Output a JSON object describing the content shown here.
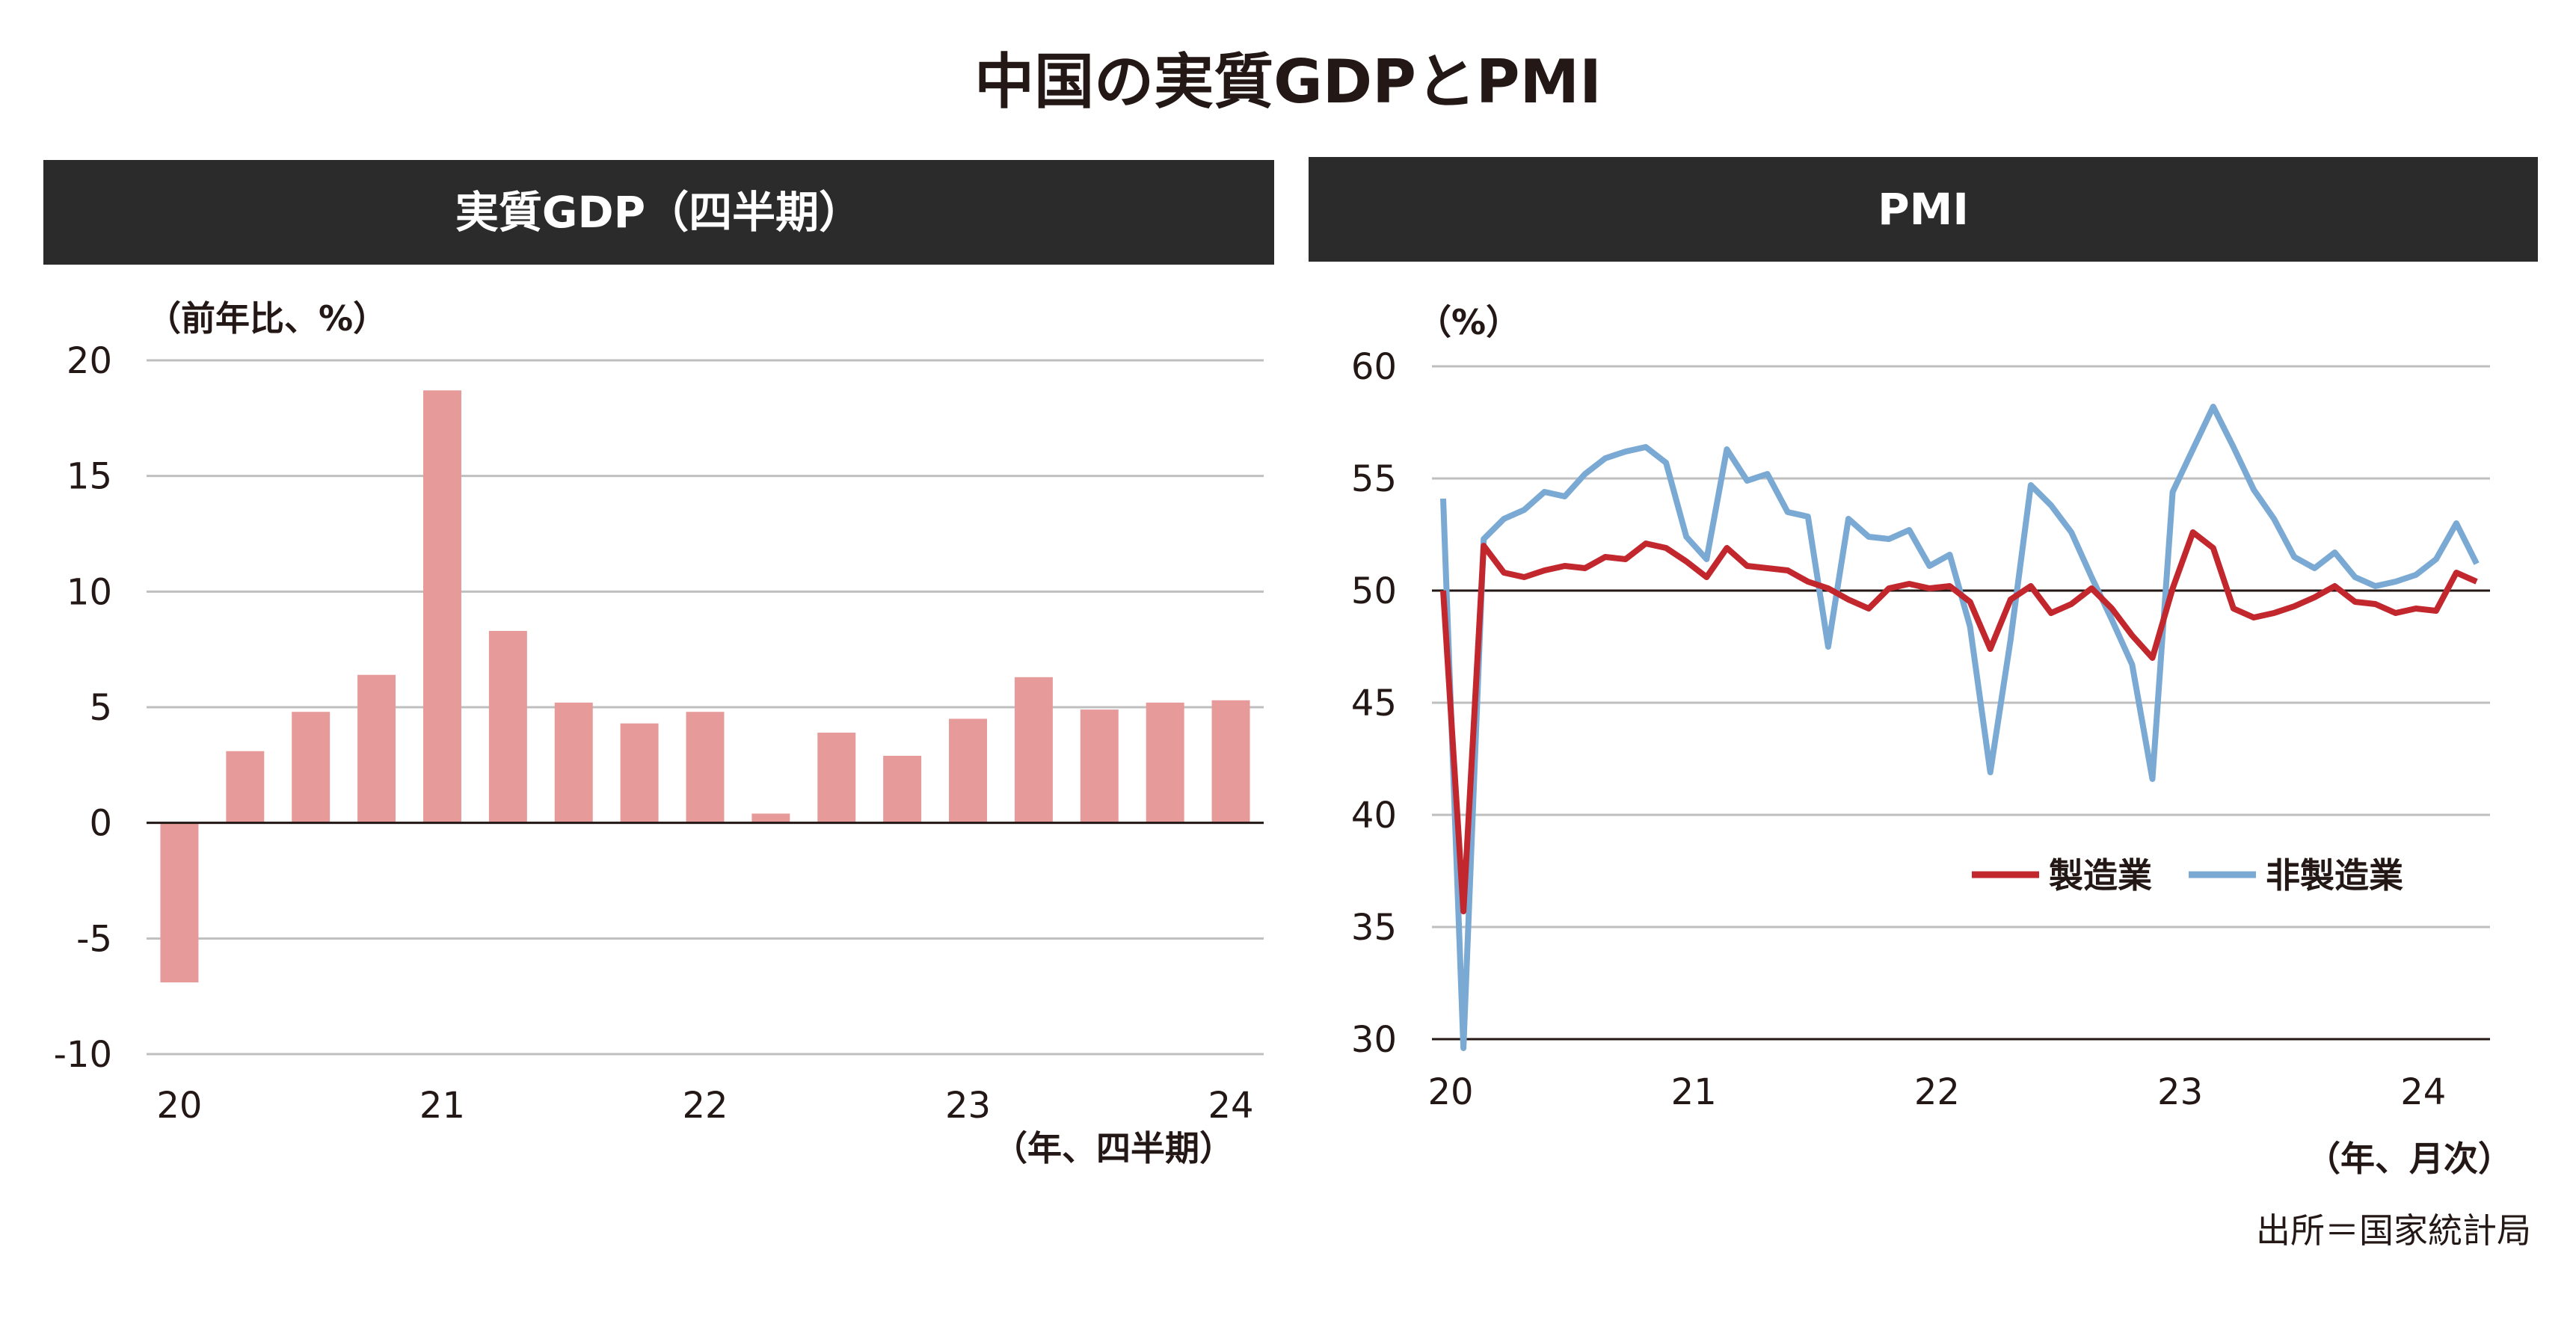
{
  "title": "中国の実質GDPとPMI",
  "source": "出所＝国家統計局",
  "colors": {
    "header_bg": "#2b2b2b",
    "bar": "#e69a99",
    "manufacturing": "#c1272d",
    "non_manufacturing": "#7aa9d3",
    "gridline": "#bfbfbf",
    "axis": "#231815"
  },
  "chart_data": [
    {
      "type": "bar",
      "title": "実質GDP（四半期）",
      "ylabel": "（前年比、%）",
      "xlabel": "（年、四半期）",
      "ylim": [
        -10,
        20
      ],
      "yticks": [
        "20",
        "15",
        "10",
        "5",
        "0",
        "-5",
        "-10"
      ],
      "xticks": [
        "20",
        "21",
        "22",
        "23",
        "24"
      ],
      "grid": true,
      "categories": [
        "20Q1",
        "20Q2",
        "20Q3",
        "20Q4",
        "21Q1",
        "21Q2",
        "21Q3",
        "21Q4",
        "22Q1",
        "22Q2",
        "22Q3",
        "22Q4",
        "23Q1",
        "23Q2",
        "23Q3",
        "23Q4",
        "24Q1"
      ],
      "values": [
        -6.9,
        3.1,
        4.8,
        6.4,
        18.7,
        8.3,
        5.2,
        4.3,
        4.8,
        0.4,
        3.9,
        2.9,
        4.5,
        6.3,
        4.9,
        5.2,
        5.3
      ]
    },
    {
      "type": "line",
      "title": "PMI",
      "ylabel": "（%）",
      "xlabel": "（年、月次）",
      "ylim": [
        30,
        60
      ],
      "yticks": [
        "60",
        "55",
        "50",
        "45",
        "40",
        "35",
        "30"
      ],
      "xticks": [
        "20",
        "21",
        "22",
        "23",
        "24"
      ],
      "grid": true,
      "reference_line": 50,
      "legend_position": "lower-right",
      "x": [
        "2020-01",
        "2020-02",
        "2020-03",
        "2020-04",
        "2020-05",
        "2020-06",
        "2020-07",
        "2020-08",
        "2020-09",
        "2020-10",
        "2020-11",
        "2020-12",
        "2021-01",
        "2021-02",
        "2021-03",
        "2021-04",
        "2021-05",
        "2021-06",
        "2021-07",
        "2021-08",
        "2021-09",
        "2021-10",
        "2021-11",
        "2021-12",
        "2022-01",
        "2022-02",
        "2022-03",
        "2022-04",
        "2022-05",
        "2022-06",
        "2022-07",
        "2022-08",
        "2022-09",
        "2022-10",
        "2022-11",
        "2022-12",
        "2023-01",
        "2023-02",
        "2023-03",
        "2023-04",
        "2023-05",
        "2023-06",
        "2023-07",
        "2023-08",
        "2023-09",
        "2023-10",
        "2023-11",
        "2023-12",
        "2024-01",
        "2024-02",
        "2024-03",
        "2024-04"
      ],
      "series": [
        {
          "name": "製造業",
          "values": [
            50.0,
            35.7,
            52.0,
            50.8,
            50.6,
            50.9,
            51.1,
            51.0,
            51.5,
            51.4,
            52.1,
            51.9,
            51.3,
            50.6,
            51.9,
            51.1,
            51.0,
            50.9,
            50.4,
            50.1,
            49.6,
            49.2,
            50.1,
            50.3,
            50.1,
            50.2,
            49.5,
            47.4,
            49.6,
            50.2,
            49.0,
            49.4,
            50.1,
            49.2,
            48.0,
            47.0,
            50.1,
            52.6,
            51.9,
            49.2,
            48.8,
            49.0,
            49.3,
            49.7,
            50.2,
            49.5,
            49.4,
            49.0,
            49.2,
            49.1,
            50.8,
            50.4
          ]
        },
        {
          "name": "非製造業",
          "values": [
            54.1,
            29.6,
            52.3,
            53.2,
            53.6,
            54.4,
            54.2,
            55.2,
            55.9,
            56.2,
            56.4,
            55.7,
            52.4,
            51.4,
            56.3,
            54.9,
            55.2,
            53.5,
            53.3,
            47.5,
            53.2,
            52.4,
            52.3,
            52.7,
            51.1,
            51.6,
            48.4,
            41.9,
            47.8,
            54.7,
            53.8,
            52.6,
            50.6,
            48.7,
            46.7,
            41.6,
            54.4,
            56.3,
            58.2,
            56.4,
            54.5,
            53.2,
            51.5,
            51.0,
            51.7,
            50.6,
            50.2,
            50.4,
            50.7,
            51.4,
            53.0,
            51.2
          ]
        }
      ]
    }
  ]
}
